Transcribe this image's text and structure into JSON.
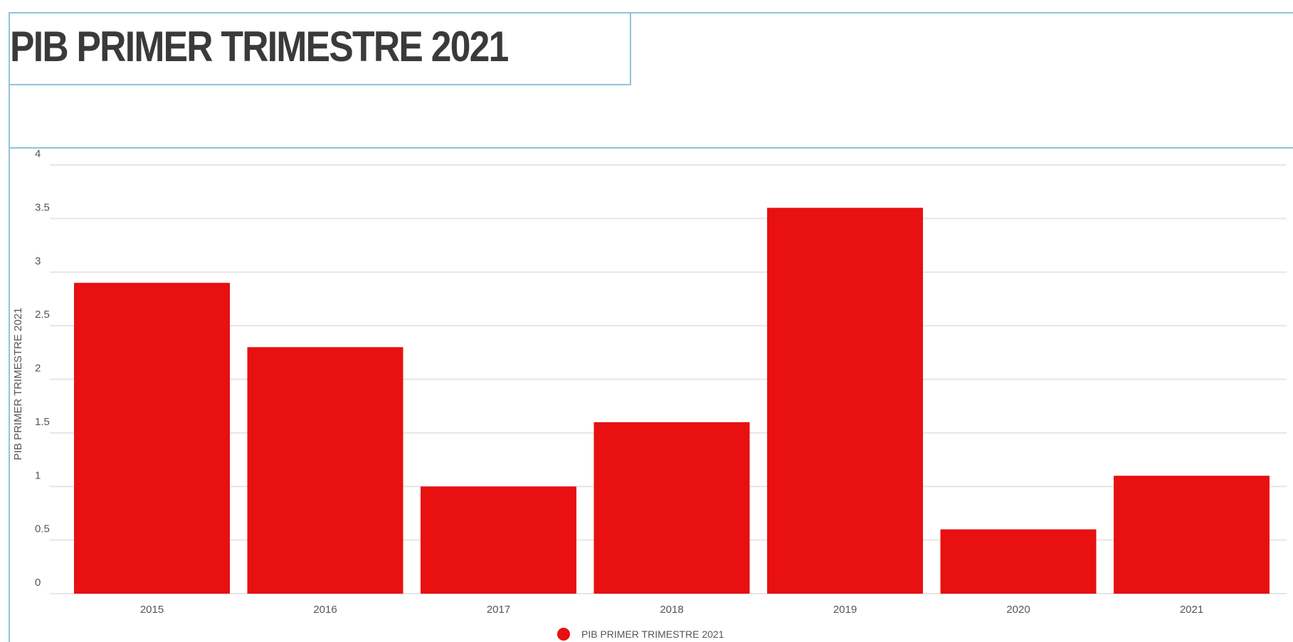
{
  "header": {
    "title": "PIB PRIMER TRIMESTRE 2021"
  },
  "chart_data": {
    "type": "bar",
    "title": "PIB PRIMER TRIMESTRE 2021",
    "xlabel": "",
    "ylabel": "PIB PRIMER TRIMESTRE 2021",
    "categories": [
      "2015",
      "2016",
      "2017",
      "2018",
      "2019",
      "2020",
      "2021"
    ],
    "series": [
      {
        "name": "PIB PRIMER TRIMESTRE 2021",
        "values": [
          2.9,
          2.3,
          1.0,
          1.6,
          3.6,
          0.6,
          1.1
        ],
        "color": "#e81010"
      }
    ],
    "ylim": [
      0,
      4
    ],
    "yticks": [
      "0",
      "0.5",
      "1",
      "1.5",
      "2",
      "2.5",
      "3",
      "3.5",
      "4"
    ],
    "grid": true,
    "legend_position": "bottom-center"
  },
  "colors": {
    "bar": "#e81010",
    "frame": "#8fc3dc",
    "grid": "#e6e6e6",
    "text": "#555555",
    "title": "#3a3a3a"
  }
}
